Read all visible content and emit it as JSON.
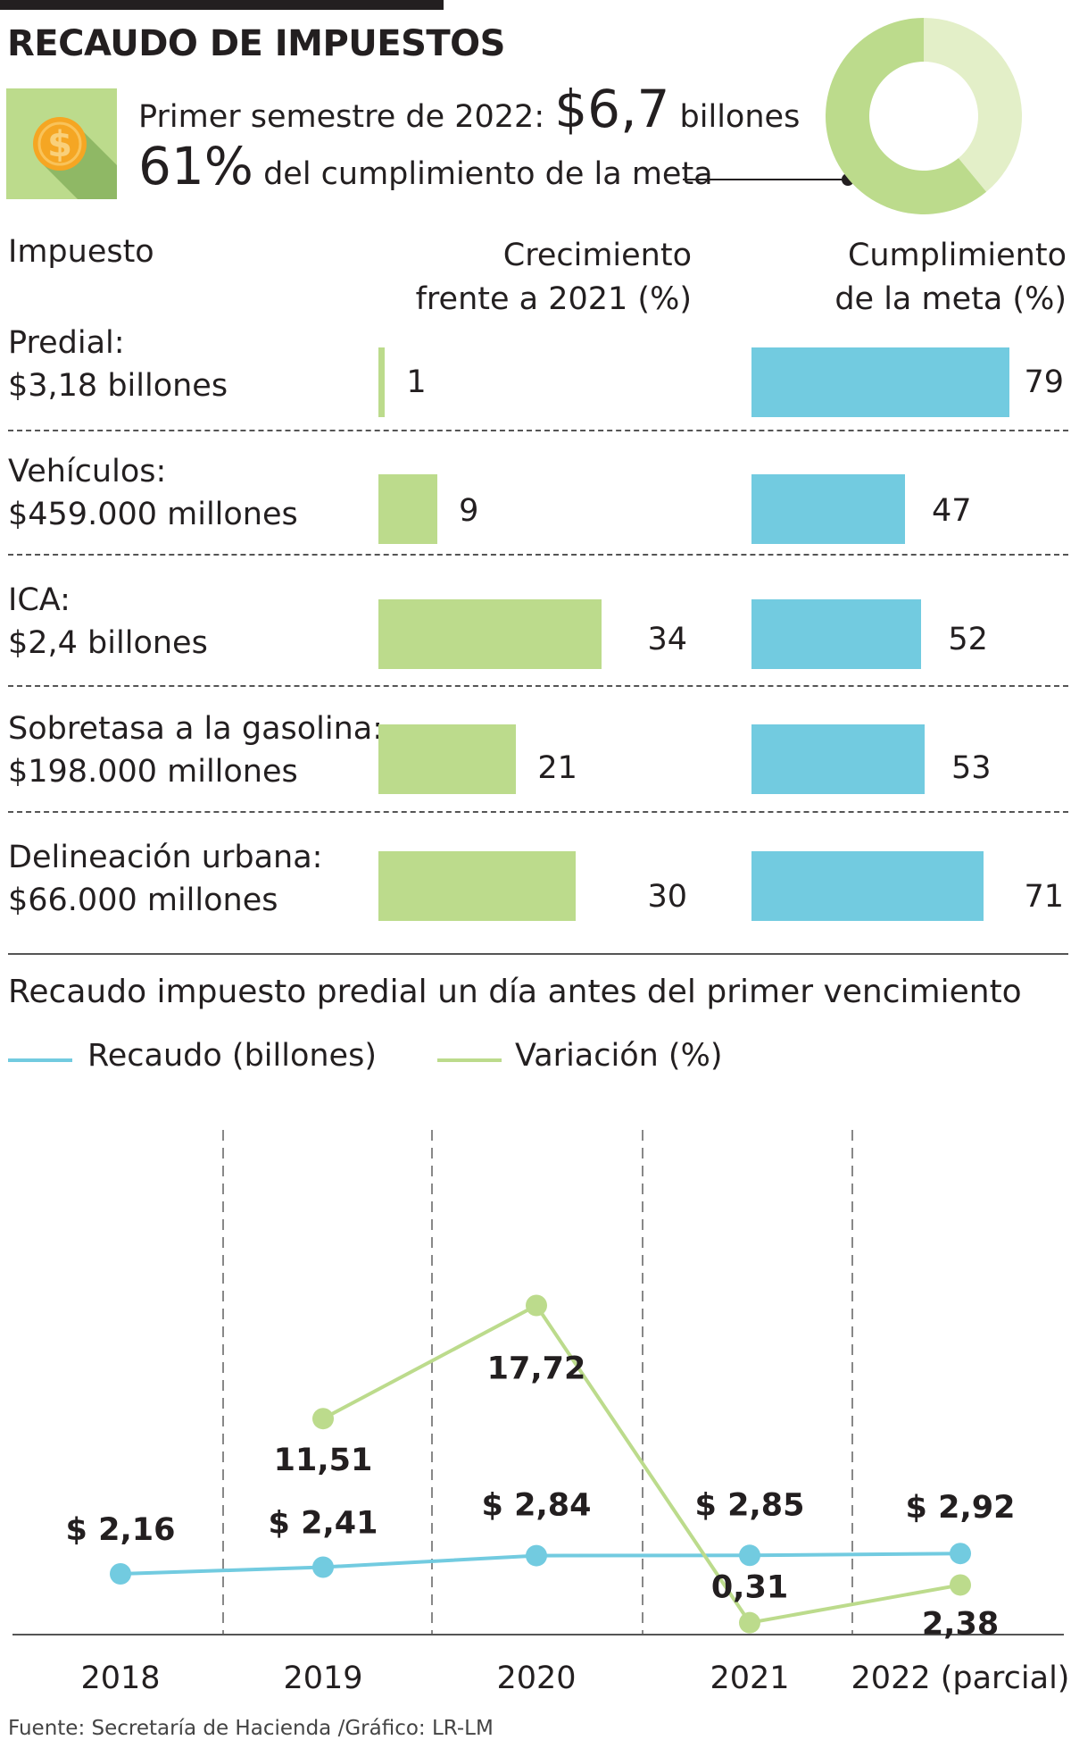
{
  "title": "RECAUDO DE IMPUESTOS",
  "summary": {
    "semester_label": "Primer semestre de 2022:",
    "amount": "$6,7",
    "amount_unit": "billones",
    "percent": "61%",
    "percent_label": "del cumplimiento de la meta",
    "donut_value": 61,
    "coin_icon": "dollar-coin-icon"
  },
  "table": {
    "headers": {
      "tax": "Impuesto",
      "growth_line1": "Crecimiento",
      "growth_line2": "frente a 2021 (%)",
      "goal_line1": "Cumplimiento",
      "goal_line2": "de la meta (%)"
    },
    "rows": [
      {
        "name": "Predial:",
        "amount": "$3,18 billones",
        "growth": 1,
        "goal": 79
      },
      {
        "name": "Vehículos:",
        "amount": "$459.000 millones",
        "growth": 9,
        "goal": 47
      },
      {
        "name": "ICA:",
        "amount": "$2,4 billones",
        "growth": 34,
        "goal": 52
      },
      {
        "name": "Sobretasa a la gasolina:",
        "amount": "$198.000 millones",
        "growth": 21,
        "goal": 53
      },
      {
        "name": "Delineación urbana:",
        "amount": "$66.000 millones",
        "growth": 30,
        "goal": 71
      }
    ]
  },
  "chart_title": "Recaudo impuesto predial un día antes del primer vencimiento",
  "legend": {
    "recaudo": "Recaudo (billones)",
    "variacion": "Variación (%)"
  },
  "chart_data": {
    "type": "line",
    "title": "Recaudo impuesto predial un día antes del primer vencimiento",
    "categories": [
      "2018",
      "2019",
      "2020",
      "2021",
      "2022 (parcial)"
    ],
    "series": [
      {
        "name": "Recaudo (billones)",
        "color": "#72cbe0",
        "values": [
          2.16,
          2.41,
          2.84,
          2.85,
          2.92
        ],
        "labels": [
          "$ 2,16",
          "$ 2,41",
          "$ 2,84",
          "$ 2,85",
          "$ 2,92"
        ]
      },
      {
        "name": "Variación (%)",
        "color": "#bcdb8c",
        "values": [
          null,
          11.51,
          17.72,
          0.31,
          2.38
        ],
        "labels": [
          "",
          "11,51",
          "17,72",
          "0,31",
          "2,38"
        ]
      }
    ]
  },
  "colors": {
    "green": "#bcdb8c",
    "blue": "#72cbe0",
    "coin": "#f5a623"
  },
  "source": "Fuente: Secretaría de Hacienda /Gráfico: LR-LM"
}
